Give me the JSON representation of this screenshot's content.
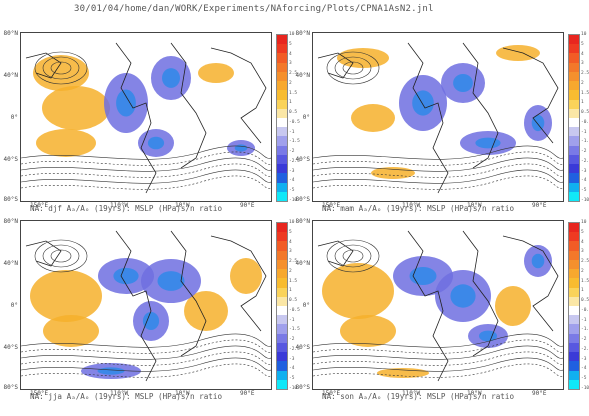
{
  "header": {
    "path_text": "30/01/04/home/dan/WORK/Experiments/NAforcing/Plots/CPNA1AsN2.jnl"
  },
  "axes": {
    "lat_labels": [
      "80°N",
      "40°N",
      "0°",
      "40°S",
      "80°S"
    ],
    "lon_labels": [
      "150°E",
      "110°W",
      "10°W",
      "90°E"
    ]
  },
  "colorbar": {
    "labels": [
      "10",
      "5",
      "4",
      "3",
      "2.5",
      "2",
      "1.5",
      "1",
      "0.5",
      "-0.5",
      "-1",
      "-1.5",
      "-2",
      "-2.5",
      "-3",
      "-4",
      "-5",
      "-10"
    ],
    "colors": [
      "#e8261f",
      "#ee3a22",
      "#f25c26",
      "#f3782a",
      "#f5902d",
      "#f7a82e",
      "#f8bc30",
      "#fad35a",
      "#fbe7a6",
      "#ffffff",
      "#c8c8f0",
      "#a0a0ec",
      "#7a7ae6",
      "#5858e0",
      "#3a3ad8",
      "#2060e0",
      "#10b0f0",
      "#10e8f8"
    ]
  },
  "panels": [
    {
      "caption": "NA: djf Aₐ/Aₒ (19yrs): MSLP (HPa)s/n ratio"
    },
    {
      "caption": "NA: mam Aₐ/Aₒ (19yrs): MSLP (HPa)s/n ratio"
    },
    {
      "caption": "NA: jja Aₐ/Aₒ (19yrs): MSLP (HPa)s/n ratio"
    },
    {
      "caption": "NA: son Aₐ/Aₒ (19yrs): MSLP (HPa)s/n ratio"
    }
  ]
}
